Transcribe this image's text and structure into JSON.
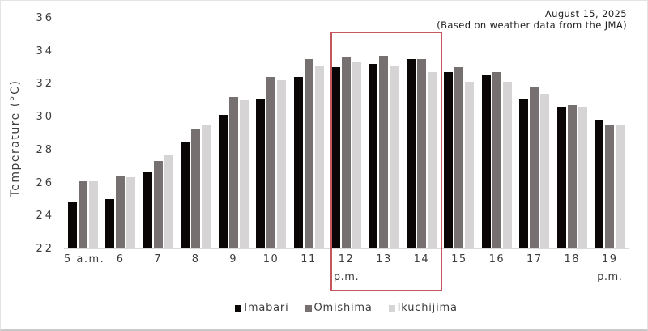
{
  "annotation": {
    "date_line": "August 15, 2025",
    "source_line": "(Based on weather data from the JMA)"
  },
  "y_axis_title": "Temperature (°C)",
  "chart_data": {
    "type": "bar",
    "title": "",
    "ylabel": "Temperature (°C)",
    "ylim": [
      22,
      36
    ],
    "yticks": [
      36,
      34,
      32,
      30,
      28,
      26,
      24,
      22
    ],
    "grid": false,
    "legend_position": "bottom",
    "categories": [
      "5 a.m.",
      "6",
      "7",
      "8",
      "9",
      "10",
      "11",
      "12",
      "13",
      "14",
      "15",
      "16",
      "17",
      "18",
      "19"
    ],
    "sublabels": {
      "7": "p.m.",
      "14": "p.m."
    },
    "series": [
      {
        "name": "Imabari",
        "color": "#0b0606",
        "values": [
          24.8,
          25.0,
          26.6,
          28.5,
          30.1,
          31.1,
          32.4,
          33.0,
          33.2,
          33.5,
          32.7,
          32.5,
          31.1,
          30.6,
          29.8
        ]
      },
      {
        "name": "Omishima",
        "color": "#767070",
        "values": [
          26.1,
          26.4,
          27.3,
          29.2,
          31.2,
          32.4,
          33.5,
          33.6,
          33.7,
          33.5,
          33.0,
          32.7,
          31.8,
          30.7,
          29.5
        ]
      },
      {
        "name": "Ikuchijima",
        "color": "#d6d4d5",
        "values": [
          26.1,
          26.3,
          27.7,
          29.5,
          31.0,
          32.2,
          33.1,
          33.3,
          33.1,
          32.7,
          32.1,
          32.1,
          31.4,
          30.6,
          29.5
        ]
      }
    ],
    "highlight": {
      "start_category": "12",
      "end_category": "14",
      "color": "#c4565e"
    }
  }
}
